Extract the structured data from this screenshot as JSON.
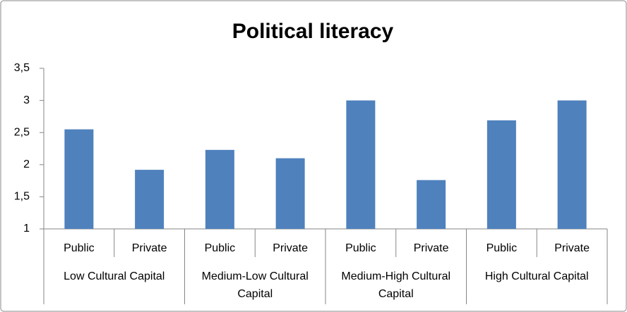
{
  "chart_data": {
    "type": "bar",
    "title": "Political literacy",
    "categories": [
      "Public",
      "Private",
      "Public",
      "Private",
      "Public",
      "Private",
      "Public",
      "Private"
    ],
    "groups": [
      "Low Cultural Capital",
      "Medium-Low Cultural Capital",
      "Medium-High Cultural Capital",
      "High Cultural Capital"
    ],
    "values": [
      2.55,
      1.92,
      2.23,
      2.1,
      3.0,
      1.76,
      2.69,
      3.0
    ],
    "color": "#4f81bd",
    "ylim": [
      1,
      3.5
    ],
    "yticks": [
      1,
      {
        "value": 1.5,
        "label": "1,5"
      },
      2,
      {
        "value": 2.5,
        "label": "2,5"
      },
      3,
      {
        "value": 3.5,
        "label": "3,5"
      }
    ],
    "grid": false
  }
}
